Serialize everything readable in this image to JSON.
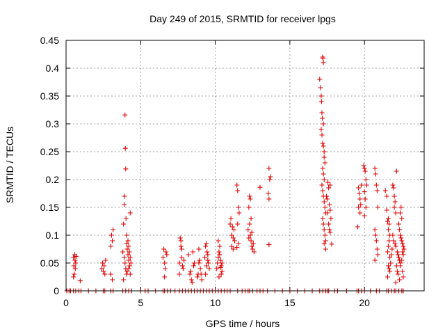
{
  "chart_data": {
    "type": "scatter",
    "title": "Day 249 of 2015, SRMTID for receiver lpgs",
    "xlabel": "GPS time / hours",
    "ylabel": "SRMTID / TECUs",
    "xlim": [
      0,
      24
    ],
    "ylim": [
      0,
      0.45
    ],
    "x_ticks": [
      0,
      5,
      10,
      15,
      20
    ],
    "y_ticks": [
      0,
      0.05,
      0.1,
      0.15,
      0.2,
      0.25,
      0.3,
      0.35,
      0.4,
      0.45
    ],
    "x_tick_labels": [
      "0",
      "5",
      "10",
      "15",
      "20"
    ],
    "y_tick_labels": [
      "0",
      "0.05",
      "0.1",
      "0.15",
      "0.2",
      "0.25",
      "0.3",
      "0.35",
      "0.4",
      "0.45"
    ],
    "grid": true,
    "marker": "+",
    "marker_color": "#e00000",
    "series": [
      {
        "name": "SRMTID",
        "points": [
          [
            0.5,
            0.06
          ],
          [
            0.52,
            0.045
          ],
          [
            0.55,
            0.03
          ],
          [
            0.58,
            0.065
          ],
          [
            0.6,
            0.055
          ],
          [
            0.62,
            0.04
          ],
          [
            0.65,
            0.05
          ],
          [
            0.68,
            0.062
          ],
          [
            0.5,
            0.025
          ],
          [
            0.95,
            0.018
          ],
          [
            2.4,
            0.04
          ],
          [
            2.45,
            0.05
          ],
          [
            2.5,
            0.035
          ],
          [
            2.55,
            0.045
          ],
          [
            2.6,
            0.03
          ],
          [
            2.65,
            0.055
          ],
          [
            3.0,
            0.08
          ],
          [
            3.05,
            0.1
          ],
          [
            3.1,
            0.09
          ],
          [
            3.15,
            0.11
          ],
          [
            3.0,
            0.03
          ],
          [
            3.1,
            0.02
          ],
          [
            3.8,
            0.07
          ],
          [
            3.85,
            0.12
          ],
          [
            3.9,
            0.155
          ],
          [
            3.92,
            0.17
          ],
          [
            3.95,
            0.316
          ],
          [
            3.97,
            0.256
          ],
          [
            4.0,
            0.219
          ],
          [
            4.02,
            0.13
          ],
          [
            4.05,
            0.1
          ],
          [
            4.07,
            0.085
          ],
          [
            3.9,
            0.06
          ],
          [
            3.95,
            0.05
          ],
          [
            4.0,
            0.04
          ],
          [
            4.05,
            0.03
          ],
          [
            3.85,
            0.02
          ],
          [
            4.1,
            0.075
          ],
          [
            4.15,
            0.065
          ],
          [
            4.2,
            0.055
          ],
          [
            4.25,
            0.045
          ],
          [
            4.3,
            0.14
          ],
          [
            4.15,
            0.09
          ],
          [
            4.2,
            0.08
          ],
          [
            4.25,
            0.07
          ],
          [
            4.3,
            0.06
          ],
          [
            4.35,
            0.05
          ],
          [
            4.1,
            0.035
          ],
          [
            4.2,
            0.04
          ],
          [
            4.3,
            0.03
          ],
          [
            6.5,
            0.06
          ],
          [
            6.55,
            0.075
          ],
          [
            6.6,
            0.05
          ],
          [
            6.65,
            0.04
          ],
          [
            6.7,
            0.07
          ],
          [
            6.75,
            0.065
          ],
          [
            6.6,
            0.025
          ],
          [
            7.6,
            0.05
          ],
          [
            7.65,
            0.095
          ],
          [
            7.7,
            0.09
          ],
          [
            7.75,
            0.06
          ],
          [
            7.8,
            0.045
          ],
          [
            7.85,
            0.04
          ],
          [
            7.9,
            0.055
          ],
          [
            7.7,
            0.08
          ],
          [
            7.75,
            0.075
          ],
          [
            7.6,
            0.03
          ],
          [
            8.2,
            0.065
          ],
          [
            8.3,
            0.03
          ],
          [
            8.4,
            0.02
          ],
          [
            8.45,
            0.015
          ],
          [
            8.5,
            0.07
          ],
          [
            8.55,
            0.045
          ],
          [
            8.6,
            0.05
          ],
          [
            8.35,
            0.035
          ],
          [
            8.8,
            0.025
          ],
          [
            8.85,
            0.03
          ],
          [
            8.9,
            0.05
          ],
          [
            8.95,
            0.055
          ],
          [
            9.0,
            0.04
          ],
          [
            9.05,
            0.03
          ],
          [
            9.1,
            0.02
          ],
          [
            8.9,
            0.075
          ],
          [
            9.3,
            0.06
          ],
          [
            9.35,
            0.08
          ],
          [
            9.4,
            0.085
          ],
          [
            9.45,
            0.07
          ],
          [
            9.5,
            0.065
          ],
          [
            9.55,
            0.05
          ],
          [
            9.6,
            0.04
          ],
          [
            9.4,
            0.045
          ],
          [
            9.5,
            0.055
          ],
          [
            9.35,
            0.03
          ],
          [
            10.1,
            0.04
          ],
          [
            10.15,
            0.05
          ],
          [
            10.2,
            0.06
          ],
          [
            10.25,
            0.07
          ],
          [
            10.3,
            0.08
          ],
          [
            10.35,
            0.055
          ],
          [
            10.4,
            0.045
          ],
          [
            10.45,
            0.035
          ],
          [
            10.2,
            0.09
          ],
          [
            10.3,
            0.065
          ],
          [
            10.4,
            0.03
          ],
          [
            10.25,
            0.025
          ],
          [
            10.35,
            0.042
          ],
          [
            10.45,
            0.05
          ],
          [
            11.0,
            0.12
          ],
          [
            11.05,
            0.13
          ],
          [
            11.1,
            0.1
          ],
          [
            11.15,
            0.115
          ],
          [
            11.2,
            0.095
          ],
          [
            11.25,
            0.11
          ],
          [
            11.3,
            0.09
          ],
          [
            11.1,
            0.08
          ],
          [
            11.2,
            0.075
          ],
          [
            11.45,
            0.19
          ],
          [
            11.5,
            0.18
          ],
          [
            11.55,
            0.15
          ],
          [
            11.6,
            0.14
          ],
          [
            11.5,
            0.12
          ],
          [
            11.55,
            0.085
          ],
          [
            11.45,
            0.078
          ],
          [
            12.2,
            0.11
          ],
          [
            12.25,
            0.15
          ],
          [
            12.3,
            0.12
          ],
          [
            12.35,
            0.1
          ],
          [
            12.4,
            0.09
          ],
          [
            12.45,
            0.08
          ],
          [
            12.5,
            0.075
          ],
          [
            12.3,
            0.17
          ],
          [
            12.35,
            0.165
          ],
          [
            12.4,
            0.13
          ],
          [
            12.45,
            0.105
          ],
          [
            12.55,
            0.085
          ],
          [
            12.6,
            0.07
          ],
          [
            12.25,
            0.095
          ],
          [
            13.0,
            0.186
          ],
          [
            13.6,
            0.22
          ],
          [
            13.65,
            0.2
          ],
          [
            13.7,
            0.205
          ],
          [
            13.55,
            0.175
          ],
          [
            13.6,
            0.165
          ],
          [
            13.6,
            0.083
          ],
          [
            17.0,
            0.38
          ],
          [
            17.05,
            0.365
          ],
          [
            17.1,
            0.35
          ],
          [
            17.12,
            0.34
          ],
          [
            17.15,
            0.32
          ],
          [
            17.18,
            0.31
          ],
          [
            17.2,
            0.42
          ],
          [
            17.22,
            0.418
          ],
          [
            17.25,
            0.41
          ],
          [
            17.25,
            0.3
          ],
          [
            17.1,
            0.29
          ],
          [
            17.15,
            0.28
          ],
          [
            17.2,
            0.265
          ],
          [
            17.25,
            0.26
          ],
          [
            17.3,
            0.25
          ],
          [
            17.3,
            0.24
          ],
          [
            17.35,
            0.23
          ],
          [
            17.2,
            0.22
          ],
          [
            17.25,
            0.21
          ],
          [
            17.3,
            0.2
          ],
          [
            17.15,
            0.19
          ],
          [
            17.2,
            0.18
          ],
          [
            17.25,
            0.17
          ],
          [
            17.3,
            0.16
          ],
          [
            17.35,
            0.15
          ],
          [
            17.4,
            0.14
          ],
          [
            17.2,
            0.13
          ],
          [
            17.25,
            0.12
          ],
          [
            17.3,
            0.11
          ],
          [
            17.35,
            0.1
          ],
          [
            17.4,
            0.09
          ],
          [
            17.3,
            0.085
          ],
          [
            17.4,
            0.075
          ],
          [
            17.45,
            0.17
          ],
          [
            17.5,
            0.165
          ],
          [
            17.55,
            0.195
          ],
          [
            17.6,
            0.185
          ],
          [
            17.65,
            0.155
          ],
          [
            17.7,
            0.145
          ],
          [
            17.75,
            0.13
          ],
          [
            17.6,
            0.12
          ],
          [
            17.65,
            0.11
          ],
          [
            17.7,
            0.105
          ],
          [
            17.5,
            0.14
          ],
          [
            17.8,
            0.084
          ],
          [
            17.7,
            0.19
          ],
          [
            19.6,
            0.185
          ],
          [
            19.65,
            0.175
          ],
          [
            19.7,
            0.165
          ],
          [
            19.75,
            0.155
          ],
          [
            19.6,
            0.15
          ],
          [
            19.7,
            0.14
          ],
          [
            19.55,
            0.115
          ],
          [
            19.8,
            0.19
          ],
          [
            19.95,
            0.225
          ],
          [
            20.0,
            0.22
          ],
          [
            20.05,
            0.215
          ],
          [
            20.1,
            0.2
          ],
          [
            20.15,
            0.19
          ],
          [
            20.0,
            0.178
          ],
          [
            20.05,
            0.165
          ],
          [
            20.1,
            0.15
          ],
          [
            20.0,
            0.135
          ],
          [
            20.7,
            0.22
          ],
          [
            20.75,
            0.21
          ],
          [
            20.8,
            0.19
          ],
          [
            20.85,
            0.18
          ],
          [
            20.9,
            0.15
          ],
          [
            20.7,
            0.11
          ],
          [
            20.75,
            0.1
          ],
          [
            20.8,
            0.09
          ],
          [
            20.85,
            0.075
          ],
          [
            20.9,
            0.065
          ],
          [
            20.7,
            0.055
          ],
          [
            21.4,
            0.18
          ],
          [
            21.5,
            0.17
          ],
          [
            21.5,
            0.145
          ],
          [
            21.6,
            0.13
          ],
          [
            21.65,
            0.12
          ],
          [
            21.55,
            0.125
          ],
          [
            21.6,
            0.11
          ],
          [
            21.7,
            0.1
          ],
          [
            21.65,
            0.09
          ],
          [
            21.6,
            0.08
          ],
          [
            21.55,
            0.07
          ],
          [
            21.7,
            0.06
          ],
          [
            21.75,
            0.05
          ],
          [
            21.6,
            0.045
          ],
          [
            21.65,
            0.04
          ],
          [
            21.7,
            0.035
          ],
          [
            21.55,
            0.025
          ],
          [
            21.8,
            0.065
          ],
          [
            21.85,
            0.075
          ],
          [
            21.9,
            0.19
          ],
          [
            21.95,
            0.185
          ],
          [
            22.0,
            0.17
          ],
          [
            22.05,
            0.16
          ],
          [
            22.0,
            0.15
          ],
          [
            22.1,
            0.14
          ],
          [
            21.9,
            0.1
          ],
          [
            21.95,
            0.09
          ],
          [
            22.05,
            0.085
          ],
          [
            22.1,
            0.08
          ],
          [
            22.15,
            0.215
          ],
          [
            22.2,
            0.07
          ],
          [
            22.25,
            0.065
          ],
          [
            22.3,
            0.06
          ],
          [
            22.35,
            0.055
          ],
          [
            22.4,
            0.05
          ],
          [
            22.15,
            0.045
          ],
          [
            22.2,
            0.035
          ],
          [
            22.25,
            0.03
          ],
          [
            22.1,
            0.015
          ],
          [
            22.3,
            0.12
          ],
          [
            22.35,
            0.11
          ],
          [
            22.4,
            0.1
          ],
          [
            22.45,
            0.095
          ],
          [
            22.5,
            0.09
          ],
          [
            22.55,
            0.085
          ],
          [
            22.6,
            0.08
          ],
          [
            22.65,
            0.075
          ],
          [
            22.4,
            0.14
          ],
          [
            22.5,
            0.13
          ],
          [
            22.55,
            0.07
          ],
          [
            22.6,
            0.065
          ],
          [
            22.5,
            0.055
          ],
          [
            22.4,
            0.045
          ],
          [
            22.55,
            0.035
          ],
          [
            22.6,
            0.025
          ],
          [
            22.45,
            0.15
          ],
          [
            22.35,
            0.02
          ]
        ],
        "zero_times": [
          0.05,
          0.2,
          0.3,
          0.5,
          0.65,
          0.85,
          1.0,
          1.5,
          2.0,
          2.5,
          2.6,
          3.0,
          3.15,
          3.8,
          4.0,
          4.2,
          4.4,
          5.0,
          5.3,
          5.5,
          6.0,
          6.5,
          6.6,
          6.8,
          7.0,
          7.3,
          7.6,
          7.8,
          8.0,
          8.2,
          8.4,
          8.6,
          8.8,
          9.0,
          9.2,
          9.4,
          9.6,
          9.8,
          10.0,
          10.2,
          10.4,
          10.6,
          10.8,
          11.0,
          11.5,
          11.8,
          12.0,
          12.2,
          12.3,
          12.5,
          12.8,
          13.0,
          13.2,
          13.5,
          14.0,
          14.5,
          15.0,
          15.5,
          16.0,
          16.5,
          17.0,
          17.2,
          17.4,
          17.5,
          17.6,
          18.0,
          18.2,
          18.8,
          19.5,
          19.6,
          19.8,
          20.0,
          20.4,
          20.8,
          21.0,
          21.5,
          21.6,
          21.8,
          22.0,
          22.1,
          22.3,
          22.5,
          22.6
        ]
      }
    ]
  }
}
